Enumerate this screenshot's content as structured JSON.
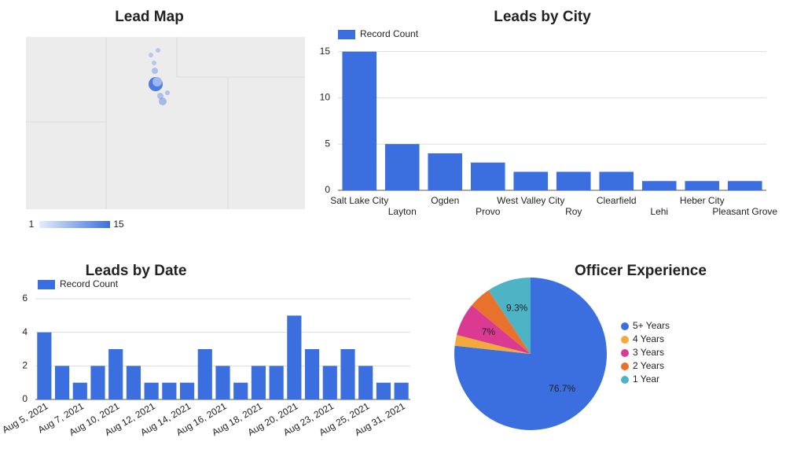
{
  "map": {
    "title": "Lead Map",
    "legend_min": 1,
    "legend_max": 15
  },
  "chart_data": [
    {
      "type": "bar",
      "title": "Leads by City",
      "categories": [
        "Salt Lake City",
        "Layton",
        "Ogden",
        "Provo",
        "West Valley City",
        "Roy",
        "Clearfield",
        "Lehi",
        "Heber City",
        "Pleasant Grove"
      ],
      "series": [
        {
          "name": "Record Count",
          "color": "#3b6fe0",
          "values": [
            15,
            5,
            4,
            3,
            2,
            2,
            2,
            1,
            1,
            1
          ]
        }
      ],
      "ylim": [
        0,
        16.5
      ],
      "yticks": [
        0,
        5,
        10,
        15
      ],
      "grid": true,
      "legend": "top-left"
    },
    {
      "type": "bar",
      "title": "Leads by Date",
      "categories": [
        "Aug 5, 2021",
        null,
        "Aug 7, 2021",
        null,
        "Aug 10, 2021",
        null,
        "Aug 12, 2021",
        null,
        "Aug 14, 2021",
        null,
        "Aug 16, 2021",
        null,
        "Aug 18, 2021",
        null,
        "Aug 20, 2021",
        null,
        "Aug 23, 2021",
        null,
        "Aug 25, 2021",
        null,
        "Aug 31, 2021"
      ],
      "series": [
        {
          "name": "Record Count",
          "color": "#3b6fe0",
          "values": [
            4,
            2,
            1,
            2,
            3,
            2,
            1,
            1,
            1,
            3,
            2,
            1,
            2,
            2,
            5,
            3,
            2,
            3,
            2,
            1,
            1
          ]
        }
      ],
      "ylim": [
        0,
        6
      ],
      "yticks": [
        0,
        2,
        4,
        6
      ],
      "grid": true,
      "legend": "top-left"
    },
    {
      "type": "pie",
      "title": "Officer Experience",
      "categories": [
        "5+ Years",
        "4 Years",
        "3 Years",
        "2 Years",
        "1 Year"
      ],
      "values": [
        76.7,
        2.3,
        7,
        4.7,
        9.3
      ],
      "value_labels": [
        "76.7%",
        null,
        "7%",
        null,
        "9.3%"
      ],
      "colors": [
        "#3b6fe0",
        "#f4a93b",
        "#da3a91",
        "#e8712c",
        "#4fb3c6"
      ],
      "legend": "right"
    }
  ]
}
